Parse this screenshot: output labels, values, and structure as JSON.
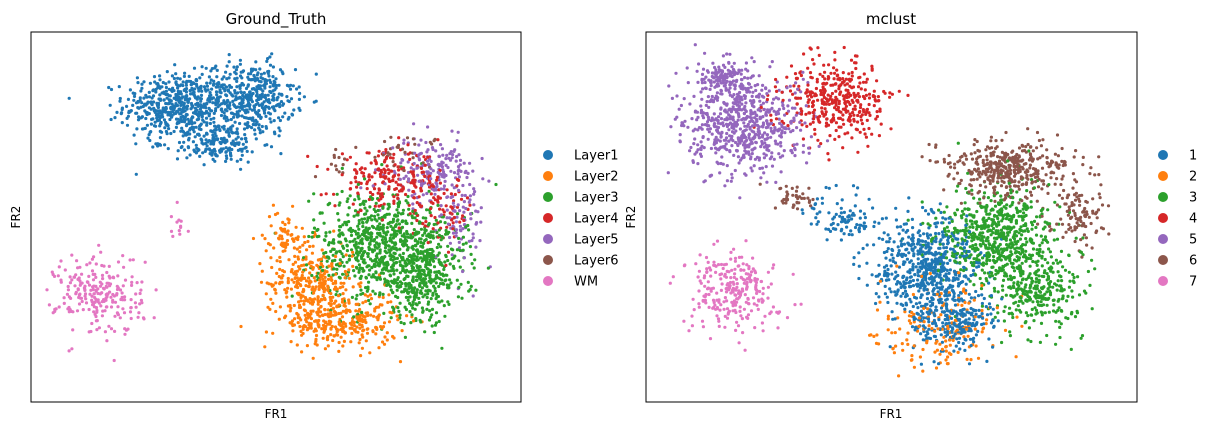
{
  "chart_data": [
    {
      "type": "scatter",
      "title": "Ground_Truth",
      "xlabel": "FR1",
      "ylabel": "FR2",
      "ticks": "none",
      "grid": false,
      "legend_placement": "right",
      "series": [
        {
          "name": "Layer1",
          "color": "#1f77b4",
          "clusters": [
            {
              "cx": 0.3,
              "cy": 0.8,
              "rx": 0.1,
              "ry": 0.08,
              "n": 520
            },
            {
              "cx": 0.45,
              "cy": 0.82,
              "rx": 0.08,
              "ry": 0.09,
              "n": 420
            },
            {
              "cx": 0.38,
              "cy": 0.7,
              "rx": 0.08,
              "ry": 0.05,
              "n": 180
            }
          ]
        },
        {
          "name": "Layer2",
          "color": "#ff7f0e",
          "clusters": [
            {
              "cx": 0.57,
              "cy": 0.32,
              "rx": 0.08,
              "ry": 0.1,
              "n": 300
            },
            {
              "cx": 0.64,
              "cy": 0.22,
              "rx": 0.1,
              "ry": 0.07,
              "n": 280
            },
            {
              "cx": 0.52,
              "cy": 0.45,
              "rx": 0.04,
              "ry": 0.06,
              "n": 60
            }
          ]
        },
        {
          "name": "Layer3",
          "color": "#2ca02c",
          "clusters": [
            {
              "cx": 0.71,
              "cy": 0.42,
              "rx": 0.12,
              "ry": 0.14,
              "n": 700
            },
            {
              "cx": 0.8,
              "cy": 0.35,
              "rx": 0.08,
              "ry": 0.12,
              "n": 380
            }
          ]
        },
        {
          "name": "Layer4",
          "color": "#d62728",
          "clusters": [
            {
              "cx": 0.73,
              "cy": 0.6,
              "rx": 0.1,
              "ry": 0.07,
              "n": 200
            },
            {
              "cx": 0.84,
              "cy": 0.52,
              "rx": 0.06,
              "ry": 0.08,
              "n": 80
            }
          ]
        },
        {
          "name": "Layer5",
          "color": "#9467bd",
          "clusters": [
            {
              "cx": 0.82,
              "cy": 0.62,
              "rx": 0.08,
              "ry": 0.08,
              "n": 190
            },
            {
              "cx": 0.88,
              "cy": 0.48,
              "rx": 0.04,
              "ry": 0.1,
              "n": 70
            }
          ]
        },
        {
          "name": "Layer6",
          "color": "#8c564b",
          "clusters": [
            {
              "cx": 0.76,
              "cy": 0.68,
              "rx": 0.07,
              "ry": 0.04,
              "n": 30
            },
            {
              "cx": 0.62,
              "cy": 0.65,
              "rx": 0.03,
              "ry": 0.03,
              "n": 12
            }
          ]
        },
        {
          "name": "WM",
          "color": "#e377c2",
          "clusters": [
            {
              "cx": 0.14,
              "cy": 0.29,
              "rx": 0.08,
              "ry": 0.1,
              "n": 240
            },
            {
              "cx": 0.3,
              "cy": 0.48,
              "rx": 0.02,
              "ry": 0.04,
              "n": 12
            }
          ]
        }
      ]
    },
    {
      "type": "scatter",
      "title": "mclust",
      "xlabel": "FR1",
      "ylabel": "FR2",
      "ticks": "none",
      "grid": false,
      "legend_placement": "right",
      "series": [
        {
          "name": "1",
          "color": "#1f77b4",
          "clusters": [
            {
              "cx": 0.57,
              "cy": 0.37,
              "rx": 0.1,
              "ry": 0.12,
              "n": 600
            },
            {
              "cx": 0.62,
              "cy": 0.22,
              "rx": 0.08,
              "ry": 0.07,
              "n": 250
            },
            {
              "cx": 0.4,
              "cy": 0.5,
              "rx": 0.06,
              "ry": 0.06,
              "n": 90
            }
          ]
        },
        {
          "name": "2",
          "color": "#ff7f0e",
          "clusters": [
            {
              "cx": 0.6,
              "cy": 0.2,
              "rx": 0.12,
              "ry": 0.1,
              "n": 160
            }
          ]
        },
        {
          "name": "3",
          "color": "#2ca02c",
          "clusters": [
            {
              "cx": 0.72,
              "cy": 0.45,
              "rx": 0.11,
              "ry": 0.12,
              "n": 650
            },
            {
              "cx": 0.8,
              "cy": 0.3,
              "rx": 0.08,
              "ry": 0.1,
              "n": 280
            }
          ]
        },
        {
          "name": "4",
          "color": "#d62728",
          "clusters": [
            {
              "cx": 0.38,
              "cy": 0.82,
              "rx": 0.1,
              "ry": 0.1,
              "n": 380
            }
          ]
        },
        {
          "name": "5",
          "color": "#9467bd",
          "clusters": [
            {
              "cx": 0.2,
              "cy": 0.75,
              "rx": 0.11,
              "ry": 0.12,
              "n": 650
            },
            {
              "cx": 0.16,
              "cy": 0.88,
              "rx": 0.05,
              "ry": 0.04,
              "n": 120
            }
          ]
        },
        {
          "name": "6",
          "color": "#8c564b",
          "clusters": [
            {
              "cx": 0.74,
              "cy": 0.63,
              "rx": 0.11,
              "ry": 0.07,
              "n": 420
            },
            {
              "cx": 0.88,
              "cy": 0.5,
              "rx": 0.05,
              "ry": 0.08,
              "n": 100
            },
            {
              "cx": 0.3,
              "cy": 0.55,
              "rx": 0.05,
              "ry": 0.03,
              "n": 40
            }
          ]
        },
        {
          "name": "7",
          "color": "#e377c2",
          "clusters": [
            {
              "cx": 0.18,
              "cy": 0.3,
              "rx": 0.08,
              "ry": 0.1,
              "n": 260
            }
          ]
        }
      ]
    }
  ]
}
